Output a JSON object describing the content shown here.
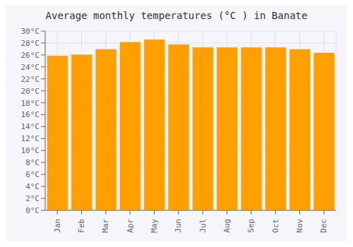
{
  "chart_data": {
    "type": "bar",
    "title": "Average monthly temperatures (°C ) in Banate",
    "categories": [
      "Jan",
      "Feb",
      "Mar",
      "Apr",
      "May",
      "Jun",
      "Jul",
      "Aug",
      "Sep",
      "Oct",
      "Nov",
      "Dec"
    ],
    "values": [
      25.9,
      26.1,
      27.0,
      28.2,
      28.6,
      27.8,
      27.3,
      27.3,
      27.3,
      27.3,
      27.0,
      26.4
    ],
    "color": "#FFA000",
    "ylim": [
      0,
      30
    ],
    "yticks": [
      {
        "value": 0,
        "label": "0°C"
      },
      {
        "value": 2,
        "label": "2°C"
      },
      {
        "value": 4,
        "label": "4°C"
      },
      {
        "value": 6,
        "label": "6°C"
      },
      {
        "value": 8,
        "label": "8°C"
      },
      {
        "value": 10,
        "label": "10°C"
      },
      {
        "value": 12,
        "label": "12°C"
      },
      {
        "value": 14,
        "label": "14°C"
      },
      {
        "value": 16,
        "label": "16°C"
      },
      {
        "value": 18,
        "label": "18°C"
      },
      {
        "value": 20,
        "label": "20°C"
      },
      {
        "value": 22,
        "label": "22°C"
      },
      {
        "value": 24,
        "label": "24°C"
      },
      {
        "value": 26,
        "label": "26°C"
      },
      {
        "value": 28,
        "label": "28°C"
      },
      {
        "value": 30,
        "label": "30°C"
      }
    ],
    "grid": true
  }
}
